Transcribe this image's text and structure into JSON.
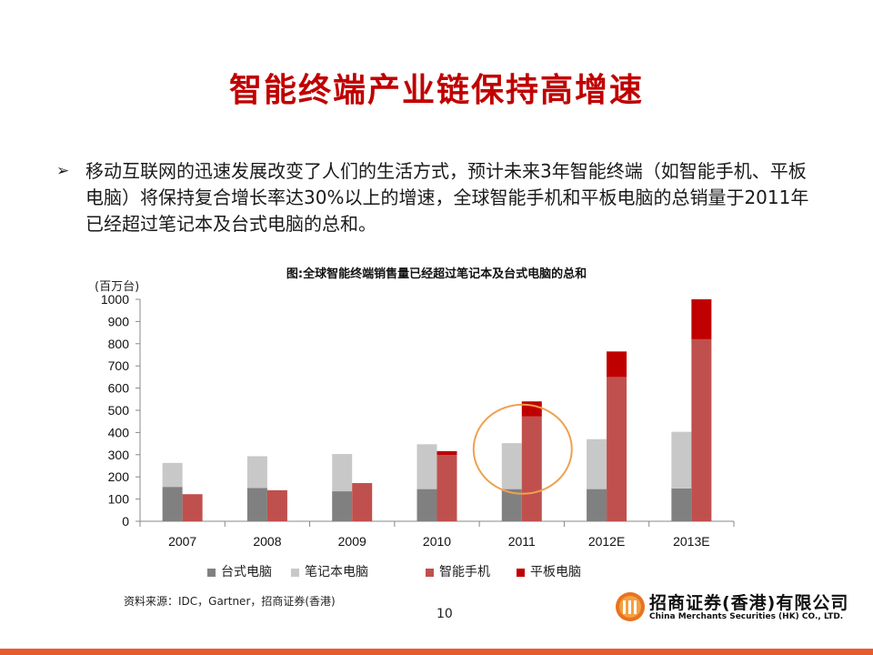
{
  "slide": {
    "title": "智能终端产业链保持高增速",
    "bullet_marker": "➢",
    "bullet_text": "移动互联网的迅速发展改变了人们的生活方式，预计未来3年智能终端（如智能手机、平板电脑）将保持复合增长率达30%以上的增速，全球智能手机和平板电脑的总销量于2011年已经超过笔记本及台式电脑的总和。",
    "source": "资料来源：IDC，Gartner，招商证券(香港)",
    "page_number": "10",
    "logo_cn": "招商证券(香港)有限公司",
    "logo_en": "China Merchants Securities (HK) CO., LTD."
  },
  "chart_data": {
    "type": "bar",
    "title": "图:全球智能终端销售量已经超过笔记本及台式电脑的总和",
    "ylabel": "(百万台)",
    "ylim": [
      0,
      1000
    ],
    "yticks": [
      "0",
      "100",
      "200",
      "300",
      "400",
      "500",
      "600",
      "700",
      "800",
      "900",
      "1000"
    ],
    "categories": [
      "2007",
      "2008",
      "2009",
      "2010",
      "2011",
      "2012E",
      "2013E"
    ],
    "groups": [
      {
        "stacked": true,
        "series": [
          {
            "name": "台式电脑",
            "values": [
              155,
              150,
              135,
              145,
              145,
              145,
              148
            ],
            "color": "#808080"
          },
          {
            "name": "笔记本电脑",
            "values": [
              108,
              143,
              168,
              202,
              207,
              225,
              255
            ],
            "color": "#c8c8c8"
          }
        ]
      },
      {
        "stacked": true,
        "series": [
          {
            "name": "智能手机",
            "values": [
              122,
              140,
              172,
              298,
              472,
              650,
              820
            ],
            "color": "#c0504d"
          },
          {
            "name": "平板电脑",
            "values": [
              0,
              0,
              0,
              18,
              68,
              115,
              180
            ],
            "color": "#c00000"
          }
        ]
      }
    ],
    "legend": [
      "台式电脑",
      "笔记本电脑",
      "智能手机",
      "平板电脑"
    ],
    "legend_position": "bottom",
    "annotation": "orange circle highlighting 2011",
    "grid": false
  },
  "colors": {
    "title": "#c00000",
    "highlight_circle": "#f0a050",
    "bottom_bar": "#e65c2e"
  }
}
